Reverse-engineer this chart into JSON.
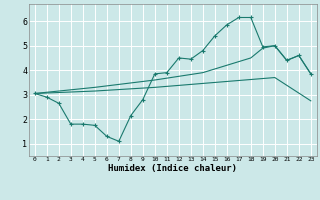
{
  "xlabel": "Humidex (Indice chaleur)",
  "background_color": "#cce8e8",
  "grid_color": "#ffffff",
  "line_color": "#1a7a6e",
  "x_min": -0.5,
  "x_max": 23.5,
  "y_min": 0.5,
  "y_max": 6.7,
  "line1_x": [
    0,
    1,
    2,
    3,
    4,
    5,
    6,
    7,
    8,
    9,
    10,
    11,
    12,
    13,
    14,
    15,
    16,
    17,
    18,
    19,
    20,
    21,
    22,
    23
  ],
  "line1_y": [
    3.05,
    2.9,
    2.65,
    1.8,
    1.8,
    1.75,
    1.3,
    1.1,
    2.15,
    2.8,
    3.85,
    3.9,
    4.5,
    4.45,
    4.8,
    5.4,
    5.85,
    6.15,
    6.15,
    4.95,
    5.0,
    4.4,
    4.6,
    3.85
  ],
  "line2_x": [
    0,
    5,
    10,
    14,
    18,
    19,
    20,
    21,
    22,
    23
  ],
  "line2_y": [
    3.05,
    3.3,
    3.6,
    3.9,
    4.5,
    4.9,
    5.0,
    4.4,
    4.6,
    3.85
  ],
  "line3_x": [
    0,
    5,
    10,
    15,
    20,
    23
  ],
  "line3_y": [
    3.05,
    3.15,
    3.3,
    3.5,
    3.7,
    2.75
  ],
  "yticks": [
    1,
    2,
    3,
    4,
    5,
    6
  ]
}
